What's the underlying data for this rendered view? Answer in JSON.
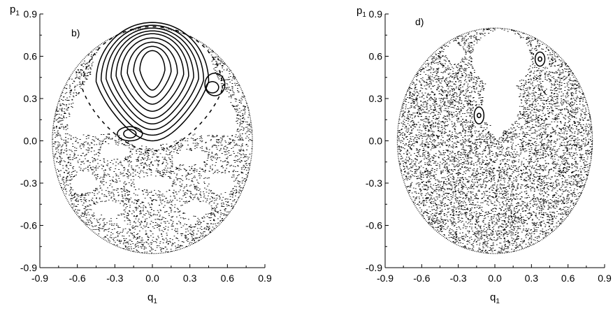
{
  "chart_data": [
    {
      "type": "scatter",
      "panel_label": "b)",
      "xlabel_main": "q",
      "xlabel_sub": "1",
      "ylabel_main": "p",
      "ylabel_sub": "1",
      "xlim": [
        -0.9,
        0.9
      ],
      "ylim": [
        -0.9,
        0.9
      ],
      "xticks": [
        "-0.9",
        "-0.6",
        "-0.3",
        "0.0",
        "0.3",
        "0.6",
        "0.9"
      ],
      "yticks": [
        "0.9",
        "0.6",
        "0.3",
        "0.0",
        "-0.3",
        "-0.6",
        "-0.9"
      ],
      "xtick_values": [
        -0.9,
        -0.6,
        -0.3,
        0.0,
        0.3,
        0.6,
        0.9
      ],
      "ytick_values": [
        0.9,
        0.6,
        0.3,
        0.0,
        -0.3,
        -0.6,
        -0.9
      ],
      "grid": false,
      "boundary": {
        "cx": 0.0,
        "cy": 0.0,
        "r": 0.8
      },
      "regular_orbits": [
        {
          "cx": 0.0,
          "cy": 0.5,
          "rx": 0.1,
          "ry": 0.14,
          "taper": 0.35
        },
        {
          "cx": 0.0,
          "cy": 0.49,
          "rx": 0.15,
          "ry": 0.18,
          "taper": 0.35
        },
        {
          "cx": 0.0,
          "cy": 0.48,
          "rx": 0.2,
          "ry": 0.22,
          "taper": 0.35
        },
        {
          "cx": 0.0,
          "cy": 0.47,
          "rx": 0.25,
          "ry": 0.26,
          "taper": 0.35
        },
        {
          "cx": 0.0,
          "cy": 0.46,
          "rx": 0.29,
          "ry": 0.3,
          "taper": 0.35
        },
        {
          "cx": 0.0,
          "cy": 0.45,
          "rx": 0.33,
          "ry": 0.33,
          "taper": 0.35
        },
        {
          "cx": 0.0,
          "cy": 0.44,
          "rx": 0.37,
          "ry": 0.36,
          "taper": 0.35
        },
        {
          "cx": 0.0,
          "cy": 0.43,
          "rx": 0.41,
          "ry": 0.39,
          "taper": 0.35
        },
        {
          "cx": 0.0,
          "cy": 0.42,
          "rx": 0.45,
          "ry": 0.42,
          "taper": 0.35
        },
        {
          "cx": 0.48,
          "cy": 0.38,
          "rx": 0.05,
          "ry": 0.04,
          "taper": 0.0
        },
        {
          "cx": 0.5,
          "cy": 0.4,
          "rx": 0.08,
          "ry": 0.08,
          "taper": 0.0
        },
        {
          "cx": -0.18,
          "cy": 0.05,
          "rx": 0.05,
          "ry": 0.03,
          "taper": 0.0
        },
        {
          "cx": -0.18,
          "cy": 0.05,
          "rx": 0.1,
          "ry": 0.05,
          "taper": 0.0
        }
      ],
      "dashed_orbits": [
        {
          "cx": 0.0,
          "cy": 0.37,
          "rx": 0.56,
          "ry": 0.44,
          "taper": 0.3
        }
      ],
      "chaotic_sea": {
        "density": 3000,
        "description_band": "outer annulus and lower half",
        "empty_regions": [
          {
            "cx": 0.0,
            "cy": 0.42,
            "rx": 0.5,
            "ry": 0.45
          },
          {
            "cx": -0.55,
            "cy": -0.3,
            "rx": 0.1,
            "ry": 0.07
          },
          {
            "cx": 0.55,
            "cy": -0.3,
            "rx": 0.1,
            "ry": 0.07
          },
          {
            "cx": -0.3,
            "cy": -0.08,
            "rx": 0.12,
            "ry": 0.05
          },
          {
            "cx": 0.3,
            "cy": -0.12,
            "rx": 0.12,
            "ry": 0.05
          },
          {
            "cx": -0.35,
            "cy": -0.48,
            "rx": 0.12,
            "ry": 0.05
          },
          {
            "cx": 0.35,
            "cy": -0.48,
            "rx": 0.12,
            "ry": 0.05
          },
          {
            "cx": 0.0,
            "cy": -0.3,
            "rx": 0.15,
            "ry": 0.05
          }
        ]
      }
    },
    {
      "type": "scatter",
      "panel_label": "d)",
      "xlabel_main": "q",
      "xlabel_sub": "1",
      "ylabel_main": "p",
      "ylabel_sub": "1",
      "xlim": [
        -0.9,
        0.9
      ],
      "ylim": [
        -0.9,
        0.9
      ],
      "xticks": [
        "-0.9",
        "-0.6",
        "-0.3",
        "0.0",
        "0.3",
        "0.6",
        "0.9"
      ],
      "yticks": [
        "0.9",
        "0.6",
        "0.3",
        "0.0",
        "-0.3",
        "-0.6",
        "-0.9"
      ],
      "xtick_values": [
        -0.9,
        -0.6,
        -0.3,
        0.0,
        0.3,
        0.6,
        0.9
      ],
      "ytick_values": [
        0.9,
        0.6,
        0.3,
        0.0,
        -0.3,
        -0.6,
        -0.9
      ],
      "grid": false,
      "boundary": {
        "cx": 0.0,
        "cy": 0.0,
        "r": 0.8
      },
      "regular_orbits": [
        {
          "cx": 0.37,
          "cy": 0.58,
          "rx": 0.015,
          "ry": 0.015,
          "taper": 0.0
        },
        {
          "cx": 0.37,
          "cy": 0.58,
          "rx": 0.04,
          "ry": 0.05,
          "taper": 0.0
        },
        {
          "cx": -0.13,
          "cy": 0.18,
          "rx": 0.015,
          "ry": 0.015,
          "taper": 0.0
        },
        {
          "cx": -0.13,
          "cy": 0.18,
          "rx": 0.04,
          "ry": 0.06,
          "taper": 0.0
        }
      ],
      "dashed_orbits": [],
      "chaotic_sea": {
        "density": 7000,
        "description_band": "entire disk",
        "empty_regions": [
          {
            "cx": 0.05,
            "cy": 0.58,
            "rx": 0.24,
            "ry": 0.2
          },
          {
            "cx": 0.05,
            "cy": 0.28,
            "rx": 0.15,
            "ry": 0.2
          },
          {
            "cx": 0.02,
            "cy": 0.12,
            "rx": 0.06,
            "ry": 0.1
          },
          {
            "cx": -0.33,
            "cy": 0.62,
            "rx": 0.07,
            "ry": 0.07
          },
          {
            "cx": 0.37,
            "cy": 0.58,
            "rx": 0.055,
            "ry": 0.065
          },
          {
            "cx": -0.13,
            "cy": 0.18,
            "rx": 0.055,
            "ry": 0.075
          }
        ]
      }
    }
  ]
}
